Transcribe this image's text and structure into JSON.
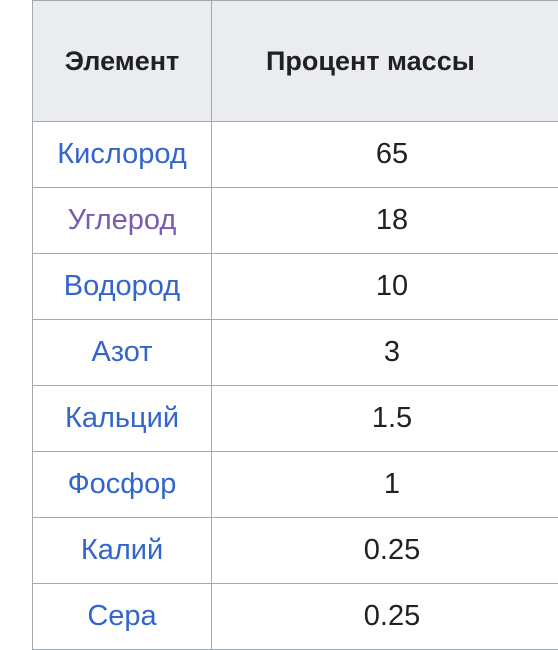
{
  "table": {
    "headers": [
      "Элемент",
      "Процент массы"
    ],
    "rows": [
      {
        "element": "Кислород",
        "percent": "65"
      },
      {
        "element": "Углерод",
        "percent": "18"
      },
      {
        "element": "Водород",
        "percent": "10"
      },
      {
        "element": "Азот",
        "percent": "3"
      },
      {
        "element": "Кальций",
        "percent": "1.5"
      },
      {
        "element": "Фосфор",
        "percent": "1"
      },
      {
        "element": "Калий",
        "percent": "0.25"
      },
      {
        "element": "Сера",
        "percent": "0.25"
      }
    ]
  },
  "colors": {
    "link": "#3366cc",
    "visited_link": "#795cb2",
    "header_bg": "#eaecf0",
    "border": "#a2a9b1",
    "text": "#202122"
  }
}
